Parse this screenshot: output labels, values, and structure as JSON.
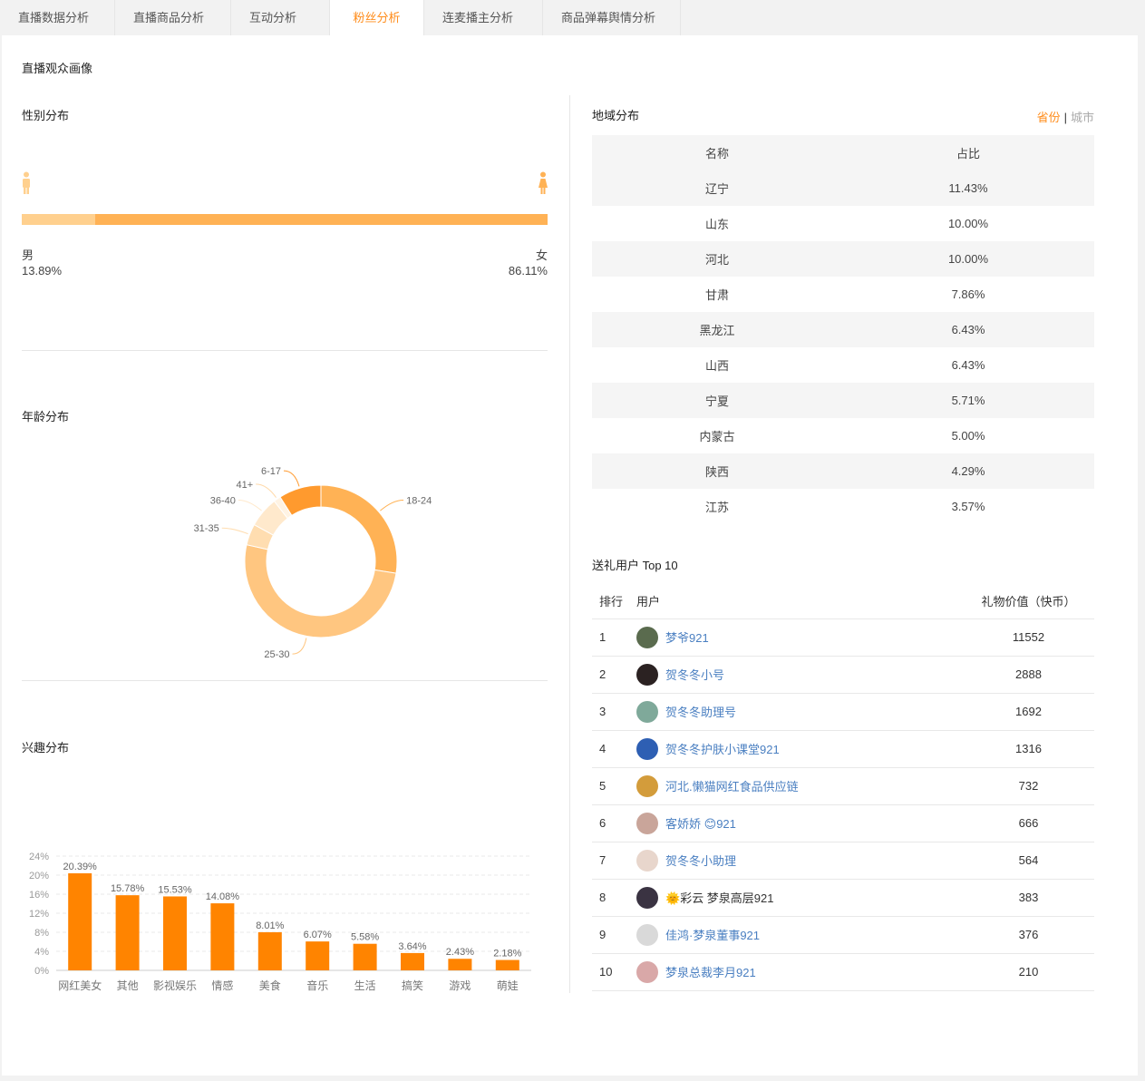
{
  "tabs": [
    {
      "label": "直播数据分析",
      "active": false
    },
    {
      "label": "直播商品分析",
      "active": false
    },
    {
      "label": "互动分析",
      "active": false
    },
    {
      "label": "粉丝分析",
      "active": true
    },
    {
      "label": "连麦播主分析",
      "active": false
    },
    {
      "label": "商品弹幕舆情分析",
      "active": false
    }
  ],
  "section_title": "直播观众画像",
  "gender": {
    "title": "性别分布",
    "male_label": "男",
    "female_label": "女",
    "male_pct_text": "13.89%",
    "female_pct_text": "86.11%",
    "male_fraction": 0.1389,
    "male_color": "#ffd08e",
    "female_color": "#ffb255",
    "male_icon": "male-person-icon",
    "female_icon": "female-person-icon"
  },
  "age": {
    "title": "年龄分布"
  },
  "interest": {
    "title": "兴趣分布"
  },
  "region": {
    "title": "地域分布",
    "toggle_province": "省份",
    "toggle_sep": "|",
    "toggle_city": "城市",
    "headers": [
      "名称",
      "占比"
    ],
    "rows": [
      [
        "辽宁",
        "11.43%"
      ],
      [
        "山东",
        "10.00%"
      ],
      [
        "河北",
        "10.00%"
      ],
      [
        "甘肃",
        "7.86%"
      ],
      [
        "黑龙江",
        "6.43%"
      ],
      [
        "山西",
        "6.43%"
      ],
      [
        "宁夏",
        "5.71%"
      ],
      [
        "内蒙古",
        "5.00%"
      ],
      [
        "陕西",
        "4.29%"
      ],
      [
        "江苏",
        "3.57%"
      ]
    ]
  },
  "gift": {
    "title": "送礼用户 Top 10",
    "headers": [
      "排行",
      "用户",
      "礼物价值（快币）"
    ],
    "rows": [
      {
        "rank": "1",
        "user": "梦爷921",
        "value": "11552",
        "avatar_color": "#5a6b4e",
        "link": true
      },
      {
        "rank": "2",
        "user": "贺冬冬小号",
        "value": "2888",
        "avatar_color": "#2b2222",
        "link": true
      },
      {
        "rank": "3",
        "user": "贺冬冬助理号",
        "value": "1692",
        "avatar_color": "#7fa99a",
        "link": true
      },
      {
        "rank": "4",
        "user": "贺冬冬护肤小课堂921",
        "value": "1316",
        "avatar_color": "#2e5fb3",
        "link": true
      },
      {
        "rank": "5",
        "user": "河北.懒猫网红食品供应链",
        "value": "732",
        "avatar_color": "#d39c3b",
        "link": true
      },
      {
        "rank": "6",
        "user": "客娇娇",
        "emoji": "😊",
        "suffix": "921",
        "value": "666",
        "avatar_color": "#c9a59a",
        "link": true
      },
      {
        "rank": "7",
        "user": "贺冬冬小助理",
        "value": "564",
        "avatar_color": "#e8d6cc",
        "link": true
      },
      {
        "rank": "8",
        "user": "彩云 梦泉高层921",
        "emoji": "🌞",
        "value": "383",
        "avatar_color": "#3a3342",
        "link": false
      },
      {
        "rank": "9",
        "user": "佳鸿·梦泉董事921",
        "value": "376",
        "avatar_color": "#d9d9d9",
        "link": true
      },
      {
        "rank": "10",
        "user": "梦泉总裁李月921",
        "value": "210",
        "avatar_color": "#d9a8a8",
        "link": true
      }
    ]
  },
  "chart_data": [
    {
      "type": "pie",
      "title": "年龄分布",
      "style": "donut",
      "categories": [
        "18-24",
        "25-30",
        "31-35",
        "36-40",
        "41+",
        "6-17"
      ],
      "values": [
        27.5,
        51.0,
        4.5,
        6.5,
        1.5,
        9.0
      ],
      "colors": [
        "#ffb255",
        "#ffc680",
        "#ffddb0",
        "#ffe9cc",
        "#fff3e3",
        "#ff9a2e"
      ]
    },
    {
      "type": "bar",
      "title": "兴趣分布",
      "categories": [
        "网红美女",
        "其他",
        "影视娱乐",
        "情感",
        "美食",
        "音乐",
        "生活",
        "搞笑",
        "游戏",
        "萌娃"
      ],
      "values": [
        20.39,
        15.78,
        15.53,
        14.08,
        8.01,
        6.07,
        5.58,
        3.64,
        2.43,
        2.18
      ],
      "data_labels": [
        "20.39%",
        "15.78%",
        "15.53%",
        "14.08%",
        "8.01%",
        "6.07%",
        "5.58%",
        "3.64%",
        "2.43%",
        "2.18%"
      ],
      "ylim": [
        0,
        24
      ],
      "yticks": [
        "0%",
        "4%",
        "8%",
        "12%",
        "16%",
        "20%",
        "24%"
      ],
      "grid": true,
      "color": "#ff8400"
    }
  ]
}
